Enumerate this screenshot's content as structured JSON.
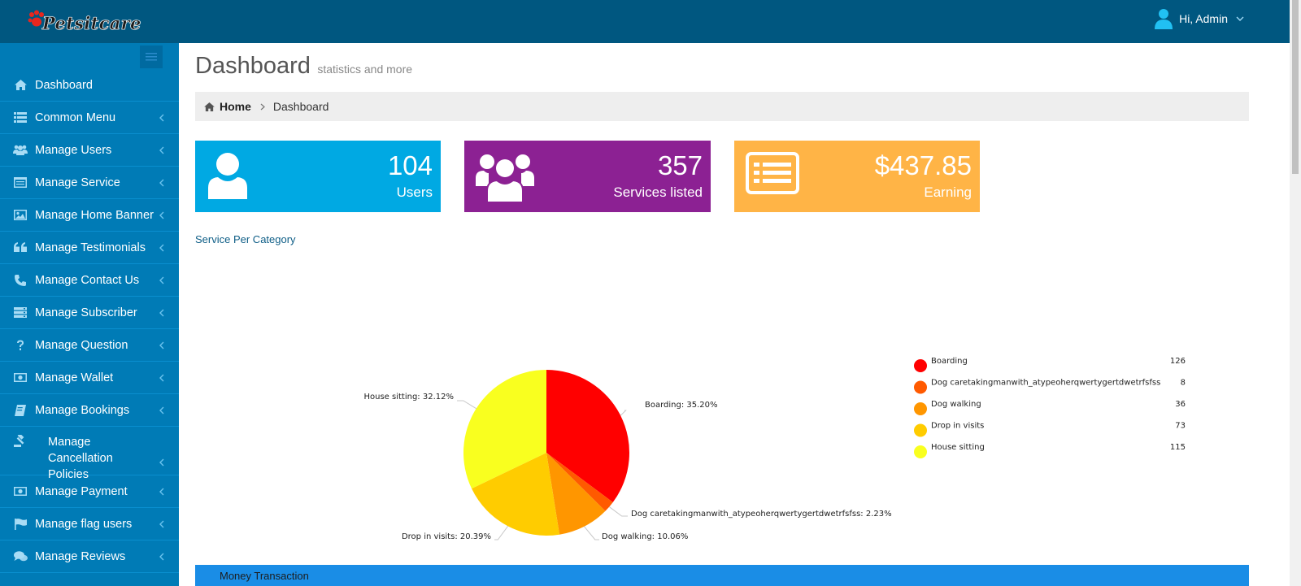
{
  "header": {
    "brand": "Petsitcare",
    "user_greeting": "Hi, Admin"
  },
  "sidebar": {
    "items": [
      {
        "label": "Dashboard",
        "icon": "home-icon"
      },
      {
        "label": "Common Menu",
        "icon": "list-icon"
      },
      {
        "label": "Manage Users",
        "icon": "users-icon"
      },
      {
        "label": "Manage Service",
        "icon": "window-icon"
      },
      {
        "label": "Manage Home Banner",
        "icon": "image-icon"
      },
      {
        "label": "Manage Testimonials",
        "icon": "quote-icon"
      },
      {
        "label": "Manage Contact Us",
        "icon": "phone-icon"
      },
      {
        "label": "Manage Subscriber",
        "icon": "server-icon"
      },
      {
        "label": "Manage Question",
        "icon": "question-icon"
      },
      {
        "label": "Manage Wallet",
        "icon": "money-icon"
      },
      {
        "label": "Manage Bookings",
        "icon": "book-icon"
      },
      {
        "label": "Manage Cancellation Policies",
        "icon": "gavel-icon"
      },
      {
        "label": "Manage Payment",
        "icon": "money-icon"
      },
      {
        "label": "Manage flag users",
        "icon": "flag-icon"
      },
      {
        "label": "Manage Reviews",
        "icon": "comments-icon"
      }
    ]
  },
  "page": {
    "title": "Dashboard",
    "subtitle": "statistics and more"
  },
  "breadcrumb": {
    "home": "Home",
    "current": "Dashboard"
  },
  "stats": {
    "users": {
      "value": "104",
      "label": "Users",
      "color": "#00a9e3",
      "icon": "user-icon"
    },
    "services": {
      "value": "357",
      "label": "Services listed",
      "color": "#8c2193",
      "icon": "group-icon"
    },
    "earning": {
      "value": "$437.85",
      "label": "Earning",
      "color": "#ffb446",
      "icon": "list-alt-icon"
    }
  },
  "section": {
    "title": "Service Per Category"
  },
  "chart_data": {
    "type": "pie",
    "title": "",
    "legend_position": "right",
    "slices": [
      {
        "name": "Boarding",
        "value": 126,
        "percent_label": "Boarding: 35.20%",
        "color": "#ff0000"
      },
      {
        "name": "Dog caretakingmanwith_atypeoherqwertygertdwetrfsfss",
        "value": 8,
        "percent_label": "Dog caretakingmanwith_atypeoherqwertygertdwetrfsfss: 2.23%",
        "color": "#ff5a00"
      },
      {
        "name": "Dog walking",
        "value": 36,
        "percent_label": "Dog walking: 10.06%",
        "color": "#ff9600"
      },
      {
        "name": "Drop in visits",
        "value": 73,
        "percent_label": "Drop in visits: 20.39%",
        "color": "#ffcc00"
      },
      {
        "name": "House sitting",
        "value": 115,
        "percent_label": "House sitting: 32.12%",
        "color": "#f9ff1f"
      }
    ]
  },
  "bottom_panel": {
    "title": "Money Transaction"
  }
}
